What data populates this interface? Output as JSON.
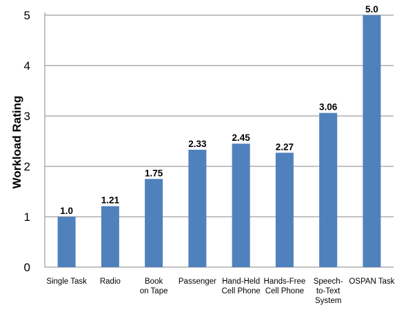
{
  "chart_data": {
    "type": "bar",
    "title": "",
    "xlabel": "",
    "ylabel": "Workload Rating",
    "ylim": [
      0,
      5
    ],
    "yticks": [
      "0",
      "1",
      "2",
      "3",
      "4",
      "5"
    ],
    "grid": true,
    "categories": [
      [
        "Single Task"
      ],
      [
        "Radio"
      ],
      [
        "Book",
        "on Tape"
      ],
      [
        "Passenger"
      ],
      [
        "Hand-Held",
        "Cell Phone"
      ],
      [
        "Hands-Free",
        "Cell Phone"
      ],
      [
        "Speech-",
        "to-Text",
        "System"
      ],
      [
        "OSPAN Task"
      ]
    ],
    "values": [
      1.0,
      1.21,
      1.75,
      2.33,
      2.45,
      2.27,
      3.06,
      5.0
    ],
    "data_labels": [
      "1.0",
      "1.21",
      "1.75",
      "2.33",
      "2.45",
      "2.27",
      "3.06",
      "5.0"
    ],
    "bar_color": "#4f81bd",
    "grid_color": "#868686"
  }
}
